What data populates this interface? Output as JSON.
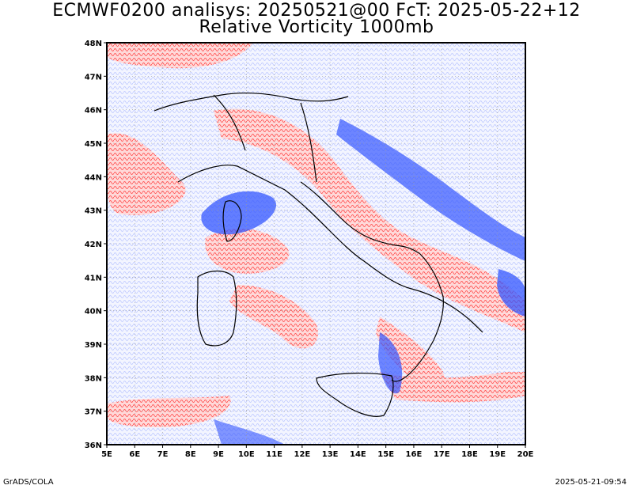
{
  "title_line1": "ECMWF0200 analisys: 20250521@00 FcT: 2025-05-22+12",
  "title_line2": "Relative Vorticity 1000mb",
  "footer_left": "GrADS/COLA",
  "footer_right": "2025-05-21-09:54",
  "map": {
    "lon_range": [
      5,
      20
    ],
    "lat_range": [
      36,
      48
    ],
    "lat_ticks": [
      "48N",
      "47N",
      "46N",
      "45N",
      "44N",
      "43N",
      "42N",
      "41N",
      "40N",
      "39N",
      "38N",
      "37N",
      "36N"
    ],
    "lon_ticks": [
      "5E",
      "6E",
      "7E",
      "8E",
      "9E",
      "10E",
      "11E",
      "12E",
      "13E",
      "14E",
      "15E",
      "16E",
      "17E",
      "18E",
      "19E",
      "20E"
    ],
    "colors": {
      "positive": "#ff3b3b",
      "negative": "#3355ff",
      "coast": "#000000",
      "grid": "#999999"
    },
    "field": "relative-vorticity-contours"
  }
}
